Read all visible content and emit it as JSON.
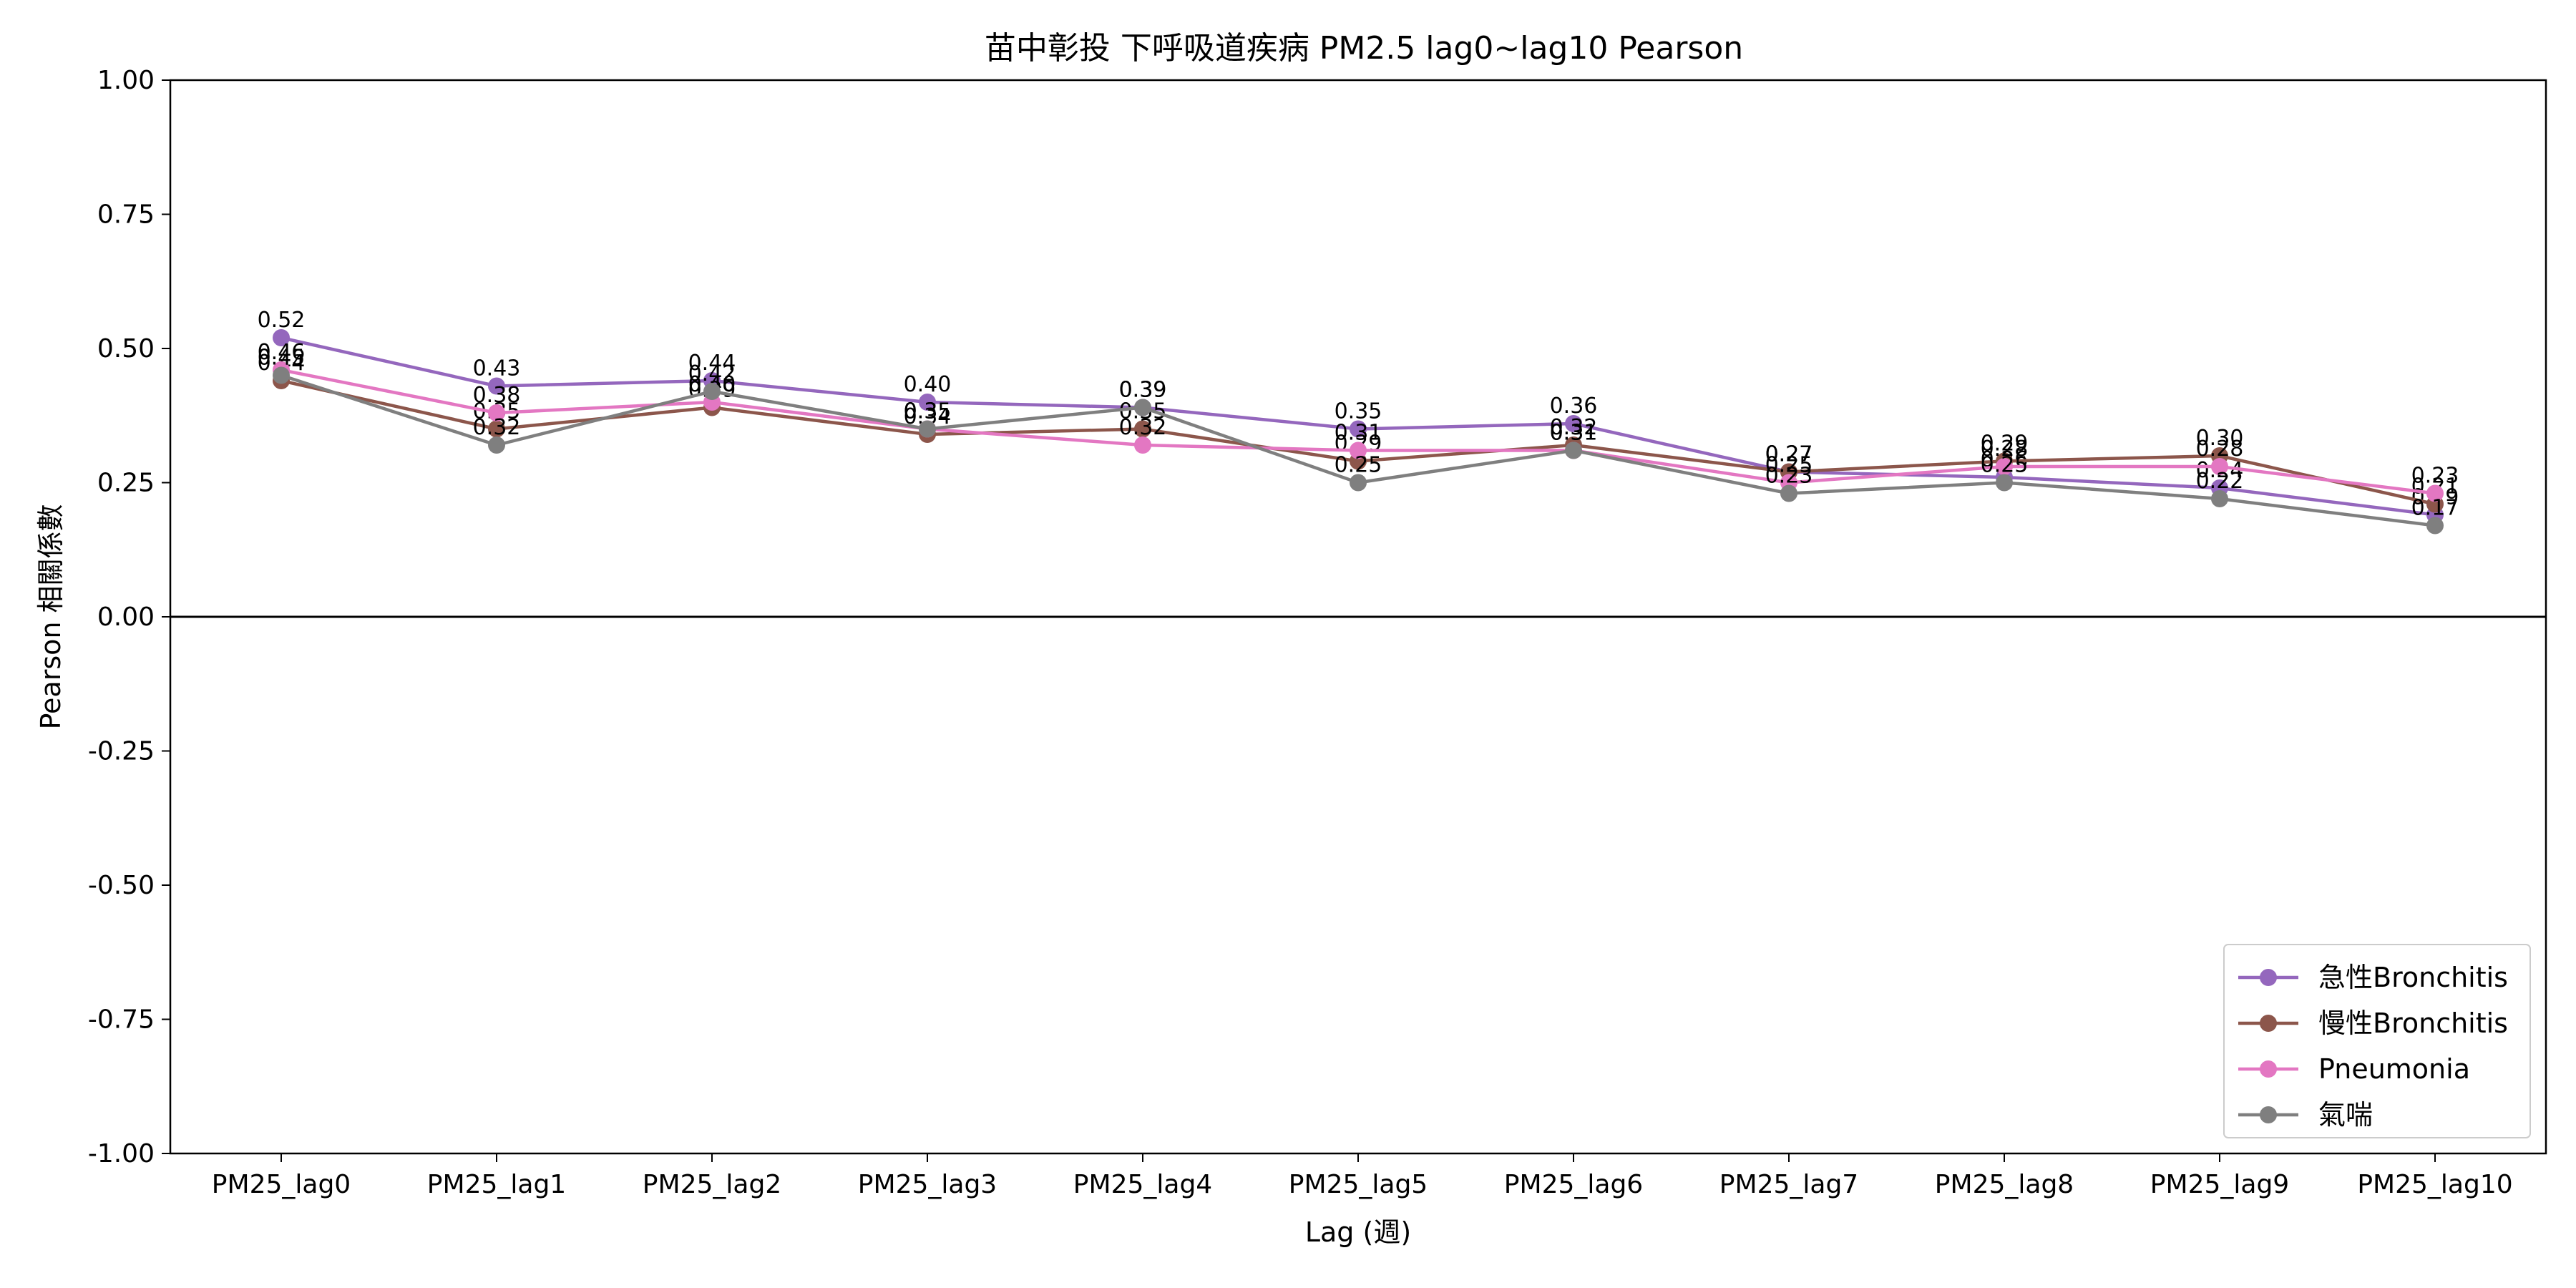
{
  "chart_data": {
    "type": "line",
    "title": "苗中彰投 下呼吸道疾病 PM2.5 lag0~lag10 Pearson",
    "xlabel": "Lag (週)",
    "ylabel": "Pearson 相關係數",
    "categories": [
      "PM25_lag0",
      "PM25_lag1",
      "PM25_lag2",
      "PM25_lag3",
      "PM25_lag4",
      "PM25_lag5",
      "PM25_lag6",
      "PM25_lag7",
      "PM25_lag8",
      "PM25_lag9",
      "PM25_lag10"
    ],
    "ylim": [
      -1.0,
      1.0
    ],
    "yticks": [
      1.0,
      0.75,
      0.5,
      0.25,
      0.0,
      -0.25,
      -0.5,
      -0.75,
      -1.0
    ],
    "ytick_labels": [
      "1.00",
      "0.75",
      "0.50",
      "0.25",
      "0.00",
      "-0.25",
      "-0.50",
      "-0.75",
      "-1.00"
    ],
    "grid": false,
    "zero_line": true,
    "legend_position": "lower-right",
    "series": [
      {
        "name": "急性Bronchitis",
        "color": "#9467bd",
        "values": [
          0.52,
          0.43,
          0.44,
          0.4,
          0.39,
          0.35,
          0.36,
          0.27,
          0.26,
          0.24,
          0.19
        ],
        "labels": [
          "0.52",
          "0.43",
          "0.44",
          "0.40",
          "0.39",
          "0.35",
          "0.36",
          "0.27",
          "0.26",
          "0.24",
          "0.19"
        ]
      },
      {
        "name": "慢性Bronchitis",
        "color": "#8c564b",
        "values": [
          0.44,
          0.35,
          0.39,
          0.34,
          0.35,
          0.29,
          0.32,
          0.27,
          0.29,
          0.3,
          0.21
        ],
        "labels": [
          "0.44",
          "0.35",
          "0.39",
          "0.34",
          "0.35",
          "0.29",
          "0.32",
          "0.27",
          "0.29",
          "0.30",
          "0.21"
        ]
      },
      {
        "name": "Pneumonia",
        "color": "#e377c2",
        "values": [
          0.46,
          0.38,
          0.4,
          0.35,
          0.32,
          0.31,
          0.31,
          0.25,
          0.28,
          0.28,
          0.23
        ],
        "labels": [
          "0.46",
          "0.38",
          "0.40",
          "0.35",
          "0.32",
          "0.31",
          "0.31",
          "0.25",
          "0.28",
          "0.28",
          "0.23"
        ]
      },
      {
        "name": "氣喘",
        "color": "#7f7f7f",
        "values": [
          0.45,
          0.32,
          0.42,
          0.35,
          0.39,
          0.25,
          0.31,
          0.23,
          0.25,
          0.22,
          0.17
        ],
        "labels": [
          "0.45",
          "0.32",
          "0.42",
          "0.35",
          "0.39",
          "0.25",
          "0.31",
          "0.23",
          "0.25",
          "0.22",
          "0.17"
        ]
      }
    ]
  }
}
